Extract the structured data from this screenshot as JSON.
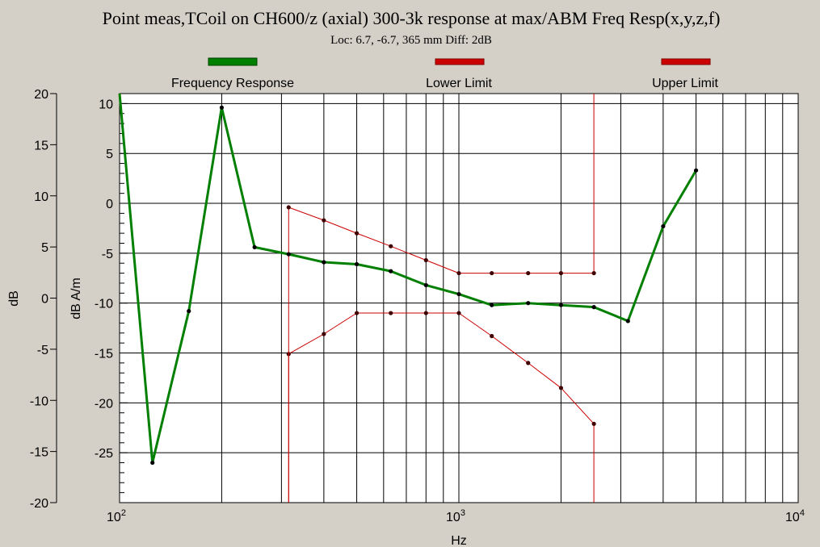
{
  "chart_data": {
    "type": "line",
    "title": "Point meas,TCoil on CH600/z (axial) 300-3k response at max/ABM Freq Resp(x,y,z,f)",
    "subtitle": "Loc: 6.7, -6.7, 365 mm Diff: 2dB",
    "xlabel": "Hz",
    "ylabel_left": "dB",
    "ylabel_right": "dB A/m",
    "x_scale": "log",
    "xlim": [
      100,
      10000
    ],
    "x_ticks": [
      {
        "base": "10",
        "exp": "2"
      },
      {
        "base": "10",
        "exp": "3"
      },
      {
        "base": "10",
        "exp": "4"
      }
    ],
    "ylim_left": [
      -20,
      20
    ],
    "ylim_right": [
      -30,
      11
    ],
    "y_ticks_left": [
      "20",
      "15",
      "10",
      "5",
      "0",
      "-5",
      "-10",
      "-15",
      "-20"
    ],
    "y_ticks_right": [
      "10",
      "5",
      "0",
      "-5",
      "-10",
      "-15",
      "-20",
      "-25"
    ],
    "grid": true,
    "legend_position": "top",
    "series": [
      {
        "name": "Frequency Response",
        "color": "#007f00",
        "axis": "right",
        "x": [
          100,
          125,
          160,
          200,
          250,
          315,
          400,
          500,
          630,
          800,
          1000,
          1250,
          1600,
          2000,
          2500,
          3150,
          4000,
          5000
        ],
        "y": [
          11,
          -26,
          -10.8,
          9.6,
          -4.4,
          -5.1,
          -5.9,
          -6.1,
          -6.8,
          -8.2,
          -9.1,
          -10.2,
          -10.0,
          -10.2,
          -10.4,
          -11.8,
          -2.3,
          3.3
        ]
      },
      {
        "name": "Lower Limit",
        "color": "#cc0000",
        "axis": "right",
        "x": [
          315,
          315,
          400,
          500,
          630,
          800,
          1000,
          1250,
          1600,
          2000,
          2500,
          2500
        ],
        "y": [
          -30,
          -15.1,
          -13.1,
          -11.0,
          -11.0,
          -11.0,
          -11.0,
          -13.3,
          -16.0,
          -18.5,
          -22.1,
          -30
        ]
      },
      {
        "name": "Upper Limit",
        "color": "#cc0000",
        "axis": "right",
        "x": [
          315,
          315,
          400,
          500,
          630,
          800,
          1000,
          1250,
          1600,
          2000,
          2500,
          2500
        ],
        "y": [
          -30,
          -0.4,
          -1.7,
          -3.0,
          -4.3,
          -5.7,
          -7.0,
          -7.0,
          -7.0,
          -7.0,
          -7.0,
          11
        ]
      }
    ]
  }
}
